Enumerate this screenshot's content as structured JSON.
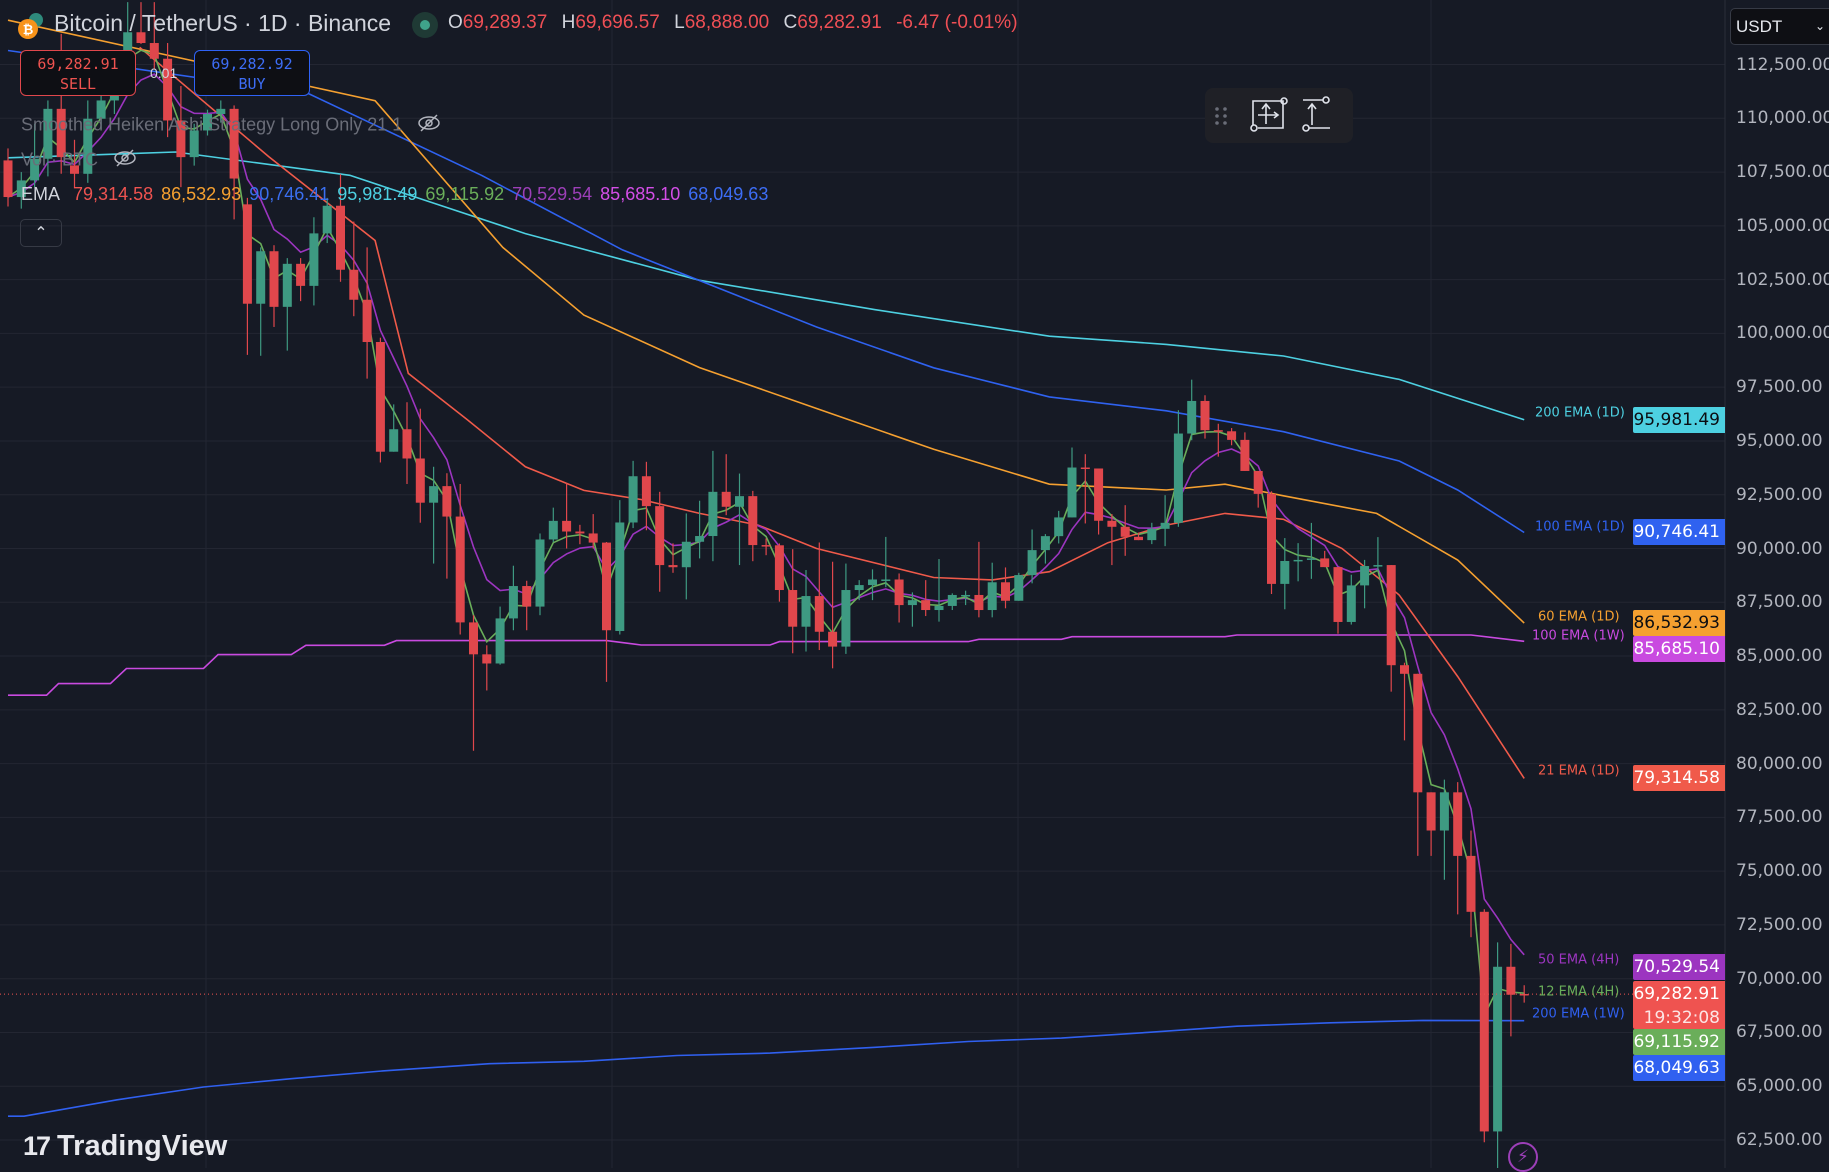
{
  "header": {
    "symbol_title": "Bitcoin / TetherUS · 1D · Binance",
    "market_status": "open",
    "ohlc": {
      "o_label": "O",
      "o": "69,289.37",
      "h_label": "H",
      "h": "69,696.57",
      "l_label": "L",
      "l": "68,888.00",
      "c_label": "C",
      "c": "69,282.91",
      "change": "-6.47 (-0.01%)"
    }
  },
  "trade": {
    "sell_price": "69,282.91",
    "sell_label": "SELL",
    "buy_price": "69,282.92",
    "buy_label": "BUY",
    "quantity": "0.01"
  },
  "indicators": {
    "strategy_label": "Smoothed Heiken Ashi Strategy Long Only 21 1",
    "volume_label": "Vol · BTC",
    "ema_label": "EMA",
    "ema_values": [
      {
        "value": "79,314.58",
        "color": "#ef5350"
      },
      {
        "value": "86,532.93",
        "color": "#f5a030"
      },
      {
        "value": "90,746.41",
        "color": "#3a6ff0"
      },
      {
        "value": "95,981.49",
        "color": "#4dd0e1"
      },
      {
        "value": "69,115.92",
        "color": "#6aae5a"
      },
      {
        "value": "70,529.54",
        "color": "#9c3fb8"
      },
      {
        "value": "85,685.10",
        "color": "#d44ee8"
      },
      {
        "value": "68,049.63",
        "color": "#3d6df5"
      }
    ],
    "collapse_icon": "chevron-up-icon"
  },
  "toolbar": {
    "items": [
      "drag-handle-icon",
      "long-position-icon",
      "measure-icon"
    ]
  },
  "currency_selector": {
    "value": "USDT"
  },
  "countdown": "19:32:08",
  "brand": "TradingView",
  "colors": {
    "background": "#161a25",
    "grid": "#232632",
    "up": "#3e9a82",
    "down": "#e0474c",
    "axis_text": "#b2b5be"
  },
  "chart_data": {
    "type": "candlestick",
    "title": "Bitcoin / TetherUS · 1D · Binance",
    "ylim": [
      61200,
      115500
    ],
    "y_ticks": [
      "112,500.00",
      "110,000.00",
      "107,500.00",
      "105,000.00",
      "102,500.00",
      "100,000.00",
      "97,500.00",
      "95,000.00",
      "92,500.00",
      "90,000.00",
      "87,500.00",
      "85,000.00",
      "82,500.00",
      "80,000.00",
      "77,500.00",
      "75,000.00",
      "72,500.00",
      "70,000.00",
      "67,500.00",
      "65,000.00",
      "62,500.00"
    ],
    "y_tick_values": [
      112500,
      110000,
      107500,
      105000,
      102500,
      100000,
      97500,
      95000,
      92500,
      90000,
      87500,
      85000,
      82500,
      80000,
      77500,
      75000,
      72500,
      70000,
      67500,
      65000,
      62500
    ],
    "grid": true,
    "candle_fields": [
      "open",
      "high",
      "low",
      "close"
    ],
    "candles": [
      [
        108043,
        108600,
        105900,
        106340
      ],
      [
        106340,
        107500,
        105800,
        107113
      ],
      [
        107113,
        109745,
        106800,
        108120
      ],
      [
        108120,
        110830,
        107300,
        110440
      ],
      [
        110440,
        113925,
        107420,
        108195
      ],
      [
        107810,
        109000,
        106800,
        107420
      ],
      [
        107420,
        110830,
        107000,
        109980
      ],
      [
        109980,
        111600,
        109500,
        110830
      ],
      [
        110830,
        112700,
        110200,
        112220
      ],
      [
        112220,
        115400,
        111800,
        114000
      ],
      [
        114000,
        115400,
        113460,
        113500
      ],
      [
        113500,
        115400,
        112300,
        112770
      ],
      [
        112770,
        113500,
        109125,
        109900
      ],
      [
        109900,
        111500,
        106800,
        108195
      ],
      [
        108195,
        109745,
        107800,
        109435
      ],
      [
        109435,
        110400,
        109200,
        110200
      ],
      [
        110200,
        110830,
        109800,
        110440
      ],
      [
        110440,
        110600,
        105300,
        107200
      ],
      [
        106000,
        106300,
        99000,
        101380
      ],
      [
        101380,
        104000,
        98960,
        103820
      ],
      [
        103820,
        104100,
        100300,
        101235
      ],
      [
        101235,
        103500,
        99200,
        103235
      ],
      [
        103235,
        103500,
        101500,
        102210
      ],
      [
        102210,
        105400,
        101300,
        104650
      ],
      [
        104650,
        106300,
        104200,
        105935
      ],
      [
        105935,
        107400,
        102400,
        102960
      ],
      [
        102960,
        105200,
        100800,
        101565
      ],
      [
        101565,
        104000,
        97900,
        99600
      ],
      [
        99600,
        99800,
        94000,
        94500
      ],
      [
        94500,
        96700,
        94500,
        95545
      ],
      [
        95545,
        96800,
        93000,
        94185
      ],
      [
        94185,
        96500,
        91200,
        92130
      ],
      [
        92130,
        93800,
        89300,
        92900
      ],
      [
        92900,
        93500,
        88600,
        91485
      ],
      [
        91485,
        93000,
        86000,
        86565
      ],
      [
        86565,
        86900,
        80600,
        85080
      ],
      [
        85080,
        85500,
        83400,
        84655
      ],
      [
        84655,
        87300,
        84600,
        86750
      ],
      [
        86750,
        89200,
        86200,
        88255
      ],
      [
        88255,
        88500,
        86200,
        87300
      ],
      [
        87300,
        90700,
        86900,
        90420
      ],
      [
        90420,
        91900,
        90300,
        91285
      ],
      [
        91285,
        93030,
        90000,
        90790
      ],
      [
        90790,
        91100,
        90200,
        90700
      ],
      [
        90700,
        91600,
        90000,
        90275
      ],
      [
        90275,
        90300,
        83800,
        86200
      ],
      [
        86165,
        92250,
        86000,
        91210
      ],
      [
        91210,
        94075,
        90950,
        93360
      ],
      [
        93360,
        94030,
        90850,
        91970
      ],
      [
        91970,
        92635,
        87990,
        89230
      ],
      [
        89230,
        90240,
        88870,
        89130
      ],
      [
        89130,
        91630,
        87635,
        90314
      ],
      [
        90314,
        92220,
        89540,
        90580
      ],
      [
        90580,
        94540,
        89410,
        92635
      ],
      [
        92635,
        94385,
        91550,
        91940
      ],
      [
        91940,
        93485,
        89230,
        92435
      ],
      [
        92435,
        92680,
        89410,
        90160
      ],
      [
        90160,
        90470,
        89690,
        90150
      ],
      [
        90150,
        90235,
        87530,
        88070
      ],
      [
        88070,
        89970,
        85130,
        86365
      ],
      [
        86365,
        89000,
        85210,
        87790
      ],
      [
        87790,
        90280,
        85280,
        86130
      ],
      [
        86130,
        89385,
        84430,
        85440
      ],
      [
        85440,
        89300,
        85100,
        88070
      ],
      [
        88070,
        88530,
        87600,
        88300
      ],
      [
        88300,
        89030,
        87600,
        88560
      ],
      [
        88560,
        90540,
        88200,
        88560
      ],
      [
        88560,
        88840,
        86560,
        87370
      ],
      [
        87370,
        87960,
        86365,
        87600
      ],
      [
        87600,
        88530,
        86860,
        87140
      ],
      [
        87140,
        89510,
        86600,
        87330
      ],
      [
        87330,
        87915,
        87140,
        87840
      ],
      [
        87840,
        88040,
        87370,
        87840
      ],
      [
        87840,
        90310,
        86800,
        87140
      ],
      [
        87140,
        89340,
        86800,
        88430
      ],
      [
        88430,
        89120,
        87220,
        87570
      ],
      [
        87570,
        88870,
        87570,
        88765
      ],
      [
        88765,
        90885,
        88380,
        89925
      ],
      [
        89925,
        90670,
        89300,
        90575
      ],
      [
        90575,
        91750,
        90235,
        91445
      ],
      [
        91445,
        94695,
        91445,
        93765
      ],
      [
        93765,
        94385,
        91165,
        93720
      ],
      [
        93720,
        93720,
        90650,
        91290
      ],
      [
        91290,
        91600,
        89230,
        91010
      ],
      [
        91010,
        92015,
        89660,
        90545
      ],
      [
        90545,
        90730,
        90390,
        90390
      ],
      [
        90390,
        91195,
        90205,
        90915
      ],
      [
        90915,
        92480,
        90110,
        91195
      ],
      [
        91195,
        96430,
        91010,
        95345
      ],
      [
        95345,
        97850,
        95035,
        96860
      ],
      [
        96860,
        97125,
        95110,
        95500
      ],
      [
        95500,
        95800,
        94270,
        95450
      ],
      [
        95450,
        95600,
        94800,
        95050
      ],
      [
        95050,
        95400,
        93605,
        93605
      ],
      [
        93605,
        93605,
        91900,
        92540
      ],
      [
        92540,
        92660,
        87885,
        88355
      ],
      [
        88355,
        90485,
        87175,
        89420
      ],
      [
        89420,
        90250,
        88475,
        89470
      ],
      [
        89470,
        91190,
        88590,
        89540
      ],
      [
        89540,
        89890,
        89135,
        89135
      ],
      [
        89135,
        89135,
        86040,
        86585
      ],
      [
        86585,
        88780,
        86465,
        88285
      ],
      [
        88285,
        89470,
        87220,
        89185
      ],
      [
        89185,
        90530,
        88950,
        89230
      ],
      [
        89230,
        89230,
        83345,
        84575
      ],
      [
        84575,
        84690,
        81080,
        84175
      ],
      [
        84175,
        84175,
        75710,
        78665
      ],
      [
        78665,
        78665,
        75710,
        76890
      ],
      [
        76890,
        79255,
        74600,
        78665
      ],
      [
        78665,
        79140,
        72990,
        75710
      ],
      [
        75710,
        76890,
        71930,
        73110
      ],
      [
        73110,
        73230,
        62400,
        62900
      ],
      [
        62900,
        71690,
        60000,
        70555
      ],
      [
        70555,
        71620,
        67320,
        69255
      ],
      [
        69289.37,
        69696.57,
        68888,
        69282.91
      ]
    ],
    "ema_lines": [
      {
        "name": "200 EMA (1D)",
        "color": "#4dd0e1",
        "last": "95,981.49",
        "badge_text": "#0b0d12",
        "points": [
          [
            0,
            108164
          ],
          [
            12.6,
            108435
          ],
          [
            25.7,
            107350
          ],
          [
            38.9,
            104640
          ],
          [
            52,
            102470
          ],
          [
            65.2,
            101100
          ],
          [
            78.3,
            99870
          ],
          [
            87.1,
            99490
          ],
          [
            95.9,
            98950
          ],
          [
            104.6,
            97860
          ],
          [
            114,
            95981.49
          ]
        ]
      },
      {
        "name": "100 EMA (1D)",
        "color": "#2f62f0",
        "last": "90,746.41",
        "badge_text": "#ffffff",
        "points": [
          [
            0,
            113150
          ],
          [
            22.6,
            111145
          ],
          [
            35.6,
            107350
          ],
          [
            46.2,
            103880
          ],
          [
            60.8,
            100300
          ],
          [
            69.6,
            98400
          ],
          [
            78.3,
            97050
          ],
          [
            87.1,
            96400
          ],
          [
            95.9,
            95430
          ],
          [
            104.6,
            94070
          ],
          [
            109,
            92720
          ],
          [
            114,
            90746.41
          ]
        ]
      },
      {
        "name": "60 EMA (1D)",
        "color": "#f5a030",
        "last": "86,532.93",
        "badge_text": "#0b0d12",
        "points": [
          [
            0,
            114560
          ],
          [
            16,
            112390
          ],
          [
            27.6,
            110820
          ],
          [
            37.2,
            104000
          ],
          [
            43.3,
            100850
          ],
          [
            52,
            98410
          ],
          [
            60.8,
            96510
          ],
          [
            69.6,
            94610
          ],
          [
            78.3,
            92990
          ],
          [
            87.1,
            92720
          ],
          [
            91.5,
            92990
          ],
          [
            95.9,
            92450
          ],
          [
            102.9,
            91630
          ],
          [
            109,
            89465
          ],
          [
            114,
            86532.93
          ]
        ]
      },
      {
        "name": "100 EMA (1W)",
        "color": "#c94ae0",
        "last": "85,685.10",
        "badge_text": "#ffffff",
        "points": [
          [
            0,
            83180
          ],
          [
            2.9,
            83180
          ],
          [
            3.8,
            83720
          ],
          [
            7.7,
            83720
          ],
          [
            8.9,
            84420
          ],
          [
            14.7,
            84420
          ],
          [
            15.8,
            85070
          ],
          [
            21.3,
            85070
          ],
          [
            22.4,
            85500
          ],
          [
            28.3,
            85500
          ],
          [
            29.2,
            85720
          ],
          [
            45,
            85720
          ],
          [
            47.6,
            85515
          ],
          [
            57.3,
            85515
          ],
          [
            58,
            85670
          ],
          [
            72.2,
            85670
          ],
          [
            73,
            85780
          ],
          [
            79.2,
            85780
          ],
          [
            80,
            85900
          ],
          [
            91.5,
            85900
          ],
          [
            92.4,
            85980
          ],
          [
            110,
            85980
          ],
          [
            114,
            85685.1
          ]
        ]
      },
      {
        "name": "21 EMA (1D)",
        "color": "#f05a4a",
        "last": "79,314.58",
        "badge_text": "#ffffff",
        "points": [
          [
            9.9,
            113300
          ],
          [
            19.6,
            108220
          ],
          [
            27.6,
            104320
          ],
          [
            30.1,
            98140
          ],
          [
            34.5,
            96000
          ],
          [
            38.9,
            93800
          ],
          [
            43.3,
            92700
          ],
          [
            47.6,
            92280
          ],
          [
            52,
            91630
          ],
          [
            56.4,
            91090
          ],
          [
            60.8,
            90000
          ],
          [
            69.6,
            88650
          ],
          [
            74,
            88540
          ],
          [
            78.3,
            88920
          ],
          [
            82.7,
            90270
          ],
          [
            87.1,
            91090
          ],
          [
            91.5,
            91630
          ],
          [
            95.9,
            91360
          ],
          [
            100.3,
            90000
          ],
          [
            104.6,
            87840
          ],
          [
            109,
            84050
          ],
          [
            114,
            79314.58
          ]
        ]
      },
      {
        "name": "50 EMA (4H)",
        "color": "#9c35c0",
        "last": "70,529.54",
        "badge_text": "#ffffff",
        "points": []
      },
      {
        "name": "12 EMA (4H)",
        "color": "#6aae5a",
        "last": "69,115.92",
        "badge_text": "#ffffff",
        "points": []
      },
      {
        "name": "200 EMA (1W)",
        "color": "#3060f0",
        "last": "68,049.63",
        "badge_text": "#ffffff",
        "points": [
          [
            0,
            63610
          ],
          [
            1.2,
            63610
          ],
          [
            8.2,
            64370
          ],
          [
            14.7,
            64965
          ],
          [
            21.3,
            65350
          ],
          [
            28.3,
            65720
          ],
          [
            36.2,
            66050
          ],
          [
            43.3,
            66160
          ],
          [
            50.3,
            66430
          ],
          [
            57.3,
            66540
          ],
          [
            65.2,
            66810
          ],
          [
            72.2,
            67080
          ],
          [
            79.2,
            67240
          ],
          [
            85.8,
            67510
          ],
          [
            92.4,
            67790
          ],
          [
            99.4,
            67950
          ],
          [
            106.4,
            68060
          ],
          [
            114,
            68049.63
          ]
        ]
      }
    ],
    "last_price": "69,282.91",
    "last_price_color": "#ef5350"
  }
}
